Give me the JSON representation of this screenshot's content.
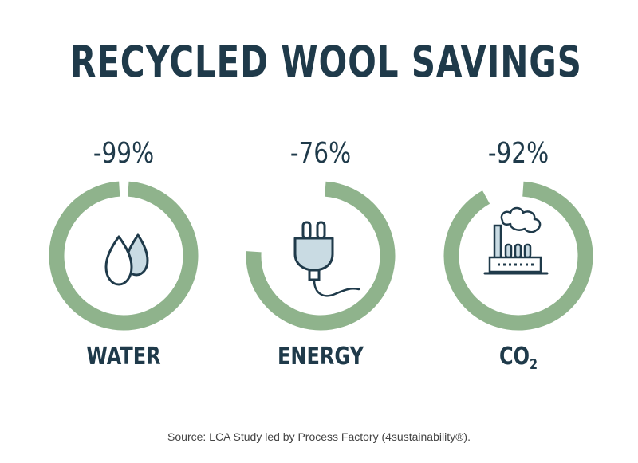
{
  "title": "RECYCLED WOOL SAVINGS",
  "source": "Source: LCA Study led by Process Factory (4sustainability®).",
  "colors": {
    "ring": "#8fb38c",
    "ink": "#1f3a4a",
    "icon_fill": "#c9dbe3"
  },
  "chart_data": {
    "type": "pie",
    "title": "RECYCLED WOOL SAVINGS",
    "categories": [
      "WATER",
      "ENERGY",
      "CO2"
    ],
    "values": [
      99,
      76,
      92
    ],
    "labels": [
      "-99%",
      "-76%",
      "-92%"
    ],
    "icons": [
      "water-drops-icon",
      "electric-plug-icon",
      "factory-icon"
    ]
  },
  "rings": [
    {
      "pct": "-99%",
      "label": "WATER",
      "icon": "water-drops-icon"
    },
    {
      "pct": "-76%",
      "label": "ENERGY",
      "icon": "electric-plug-icon"
    },
    {
      "pct": "-92%",
      "label_main": "CO",
      "label_sub": "2",
      "icon": "factory-icon"
    }
  ]
}
